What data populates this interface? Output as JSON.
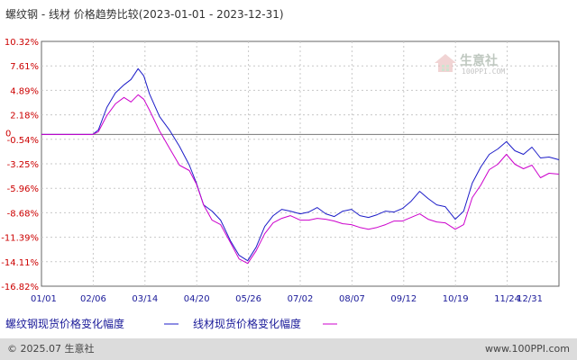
{
  "chart_data": {
    "type": "line",
    "title": "螺纹钢 - 线材 价格趋势比较(2023-01-01 - 2023-12-31)",
    "y_ticks": [
      "10.32%",
      "7.61%",
      "4.89%",
      "2.18%",
      "-0.54%",
      "-3.25%",
      "-5.96%",
      "-8.68%",
      "-11.39%",
      "-14.11%",
      "-16.82%"
    ],
    "zero_label": "0",
    "x_ticks": [
      "01/01",
      "02/06",
      "03/14",
      "04/20",
      "05/26",
      "07/02",
      "08/07",
      "09/12",
      "10/19",
      "11/24",
      "12/31"
    ],
    "ylim": [
      -16.82,
      10.32
    ],
    "grid": true,
    "legend_position": "bottom",
    "x": [
      "01/01",
      "01/13",
      "01/25",
      "02/06",
      "02/10",
      "02/16",
      "02/22",
      "02/28",
      "03/05",
      "03/10",
      "03/14",
      "03/18",
      "03/25",
      "04/01",
      "04/08",
      "04/15",
      "04/20",
      "04/25",
      "05/01",
      "05/07",
      "05/14",
      "05/20",
      "05/26",
      "06/01",
      "06/07",
      "06/13",
      "06/19",
      "06/25",
      "07/02",
      "07/08",
      "07/14",
      "07/20",
      "07/26",
      "08/01",
      "08/07",
      "08/13",
      "08/19",
      "08/25",
      "08/31",
      "09/06",
      "09/12",
      "09/18",
      "09/24",
      "09/30",
      "10/06",
      "10/12",
      "10/19",
      "10/25",
      "10/31",
      "11/06",
      "11/12",
      "11/18",
      "11/24",
      "11/30",
      "12/06",
      "12/12",
      "12/18",
      "12/24",
      "12/31"
    ],
    "series": [
      {
        "name": "螺纹钢现货价格变化幅度",
        "color": "#1c1cc8",
        "values": [
          0.0,
          0.0,
          0.0,
          0.0,
          0.5,
          3.0,
          4.6,
          5.5,
          6.1,
          7.3,
          6.5,
          4.5,
          2.0,
          0.5,
          -1.3,
          -3.4,
          -5.4,
          -7.8,
          -8.5,
          -9.5,
          -11.8,
          -13.4,
          -14.0,
          -12.5,
          -10.2,
          -9.0,
          -8.3,
          -8.5,
          -8.8,
          -8.6,
          -8.1,
          -8.8,
          -9.1,
          -8.5,
          -8.3,
          -9.0,
          -9.2,
          -8.9,
          -8.5,
          -8.6,
          -8.2,
          -7.4,
          -6.3,
          -7.1,
          -7.8,
          -8.0,
          -9.4,
          -8.5,
          -5.4,
          -3.6,
          -2.2,
          -1.6,
          -0.8,
          -1.8,
          -2.2,
          -1.4,
          -2.6,
          -2.5,
          -2.8
        ]
      },
      {
        "name": "线材现货价格变化幅度",
        "color": "#cc00cc",
        "values": [
          0.0,
          0.0,
          0.0,
          0.0,
          0.3,
          2.1,
          3.4,
          4.1,
          3.6,
          4.4,
          3.9,
          2.7,
          0.4,
          -1.5,
          -3.4,
          -4.0,
          -5.5,
          -7.8,
          -9.5,
          -10.0,
          -12.0,
          -13.8,
          -14.3,
          -12.9,
          -11.0,
          -9.8,
          -9.3,
          -9.0,
          -9.5,
          -9.5,
          -9.3,
          -9.4,
          -9.6,
          -9.9,
          -10.0,
          -10.3,
          -10.5,
          -10.3,
          -10.0,
          -9.6,
          -9.6,
          -9.2,
          -8.8,
          -9.4,
          -9.7,
          -9.8,
          -10.5,
          -10.0,
          -7.0,
          -5.6,
          -3.9,
          -3.3,
          -2.2,
          -3.3,
          -3.8,
          -3.4,
          -4.8,
          -4.3,
          -4.4
        ]
      }
    ]
  },
  "legend": {
    "label_1": "螺纹钢现货价格变化幅度",
    "label_2": "线材现货价格变化幅度"
  },
  "watermark": {
    "name": "生意社",
    "site": "100PPI.COM"
  },
  "footer": {
    "left": "© 2025.07 生意社",
    "right": "www.100PPI.com"
  },
  "colors": {
    "axis_label": "#cc0000",
    "date_label": "#1a1a99",
    "plot_bg": "#ffffff",
    "page_bg": "#ffffff",
    "footer_bg": "#dcdcdc"
  }
}
